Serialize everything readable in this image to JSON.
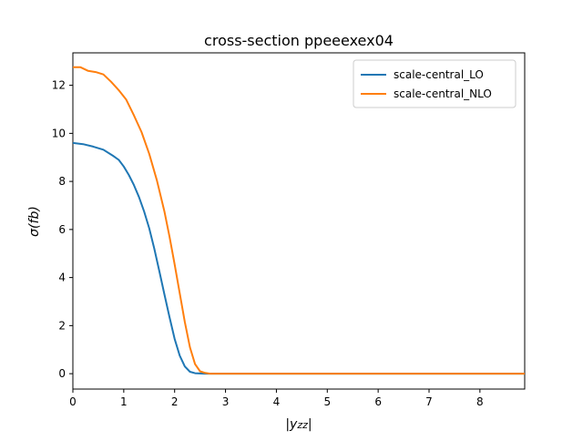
{
  "chart_data": {
    "type": "line",
    "title": "cross-section ppeeexex04",
    "xlabel": "|y_zz|",
    "ylabel": "σ(fb)",
    "xlim": [
      0,
      8.88
    ],
    "ylim": [
      -0.64,
      13.35
    ],
    "xticks": [
      0,
      1,
      2,
      3,
      4,
      5,
      6,
      7,
      8
    ],
    "xtick_labels": [
      "0",
      "1",
      "2",
      "3",
      "4",
      "5",
      "6",
      "7",
      "8"
    ],
    "yticks": [
      0,
      2,
      4,
      6,
      8,
      10,
      12
    ],
    "ytick_labels": [
      "0",
      "2",
      "4",
      "6",
      "8",
      "10",
      "12"
    ],
    "grid": false,
    "legend_position": "top-right",
    "series": [
      {
        "name": "scale-central_LO",
        "color": "#1f77b4",
        "x": [
          0,
          0.2,
          0.4,
          0.6,
          0.8,
          0.9,
          1.0,
          1.1,
          1.2,
          1.3,
          1.4,
          1.5,
          1.6,
          1.7,
          1.8,
          1.9,
          2.0,
          2.1,
          2.2,
          2.3,
          2.4,
          2.5,
          2.6,
          2.7,
          3.0,
          4.0,
          5.0,
          6.0,
          7.0,
          8.0,
          8.88
        ],
        "y": [
          9.6,
          9.55,
          9.45,
          9.32,
          9.05,
          8.9,
          8.62,
          8.27,
          7.85,
          7.35,
          6.75,
          6.05,
          5.2,
          4.25,
          3.3,
          2.35,
          1.45,
          0.75,
          0.3,
          0.08,
          0.02,
          0.01,
          0,
          0,
          0,
          0,
          0,
          0,
          0,
          0,
          0
        ]
      },
      {
        "name": "scale-central_NLO",
        "color": "#ff7f0e",
        "x": [
          0,
          0.15,
          0.3,
          0.45,
          0.6,
          0.75,
          0.9,
          1.05,
          1.2,
          1.35,
          1.5,
          1.65,
          1.8,
          1.9,
          2.0,
          2.1,
          2.2,
          2.3,
          2.4,
          2.5,
          2.6,
          2.7,
          3.0,
          4.0,
          5.0,
          6.0,
          7.0,
          8.0,
          8.88
        ],
        "y": [
          12.75,
          12.75,
          12.6,
          12.55,
          12.45,
          12.15,
          11.8,
          11.4,
          10.75,
          10.05,
          9.15,
          8.05,
          6.75,
          5.7,
          4.55,
          3.35,
          2.15,
          1.1,
          0.4,
          0.1,
          0.03,
          0,
          0,
          0,
          0,
          0,
          0,
          0,
          0
        ]
      }
    ]
  }
}
